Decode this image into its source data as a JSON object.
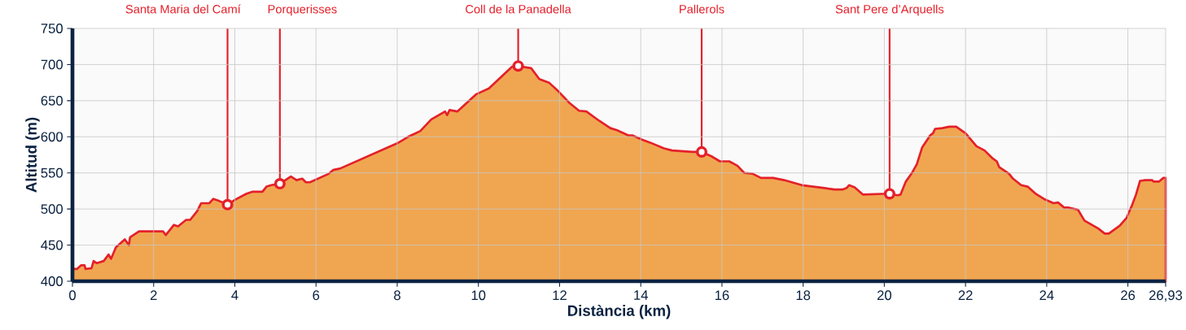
{
  "chart_data": {
    "type": "area",
    "xlabel": "Distància (km)",
    "ylabel": "Altitud (m)",
    "xlim": [
      0,
      26.93
    ],
    "ylim": [
      400,
      750
    ],
    "xticks": [
      0,
      2,
      4,
      6,
      8,
      10,
      12,
      14,
      16,
      18,
      20,
      22,
      24,
      26,
      {
        "value": 26.93,
        "label": "26,93"
      }
    ],
    "yticks": [
      400,
      450,
      500,
      550,
      600,
      650,
      700,
      750
    ],
    "grid": true,
    "x": [
      0,
      0.11,
      0.21,
      0.3,
      0.32,
      0.47,
      0.52,
      0.6,
      0.77,
      0.89,
      0.95,
      1.07,
      1.29,
      1.39,
      1.42,
      1.64,
      2.23,
      2.3,
      2.4,
      2.5,
      2.6,
      2.8,
      2.9,
      3.07,
      3.17,
      3.37,
      3.47,
      3.62,
      3.82,
      4.01,
      4.28,
      4.44,
      4.68,
      4.78,
      4.9,
      5.11,
      5.38,
      5.52,
      5.66,
      5.75,
      5.85,
      6.32,
      6.42,
      6.59,
      8.0,
      8.27,
      8.57,
      8.84,
      9.18,
      9.23,
      9.29,
      9.48,
      9.95,
      10.26,
      10.83,
      10.98,
      11.3,
      11.5,
      11.74,
      11.97,
      12.24,
      12.48,
      12.66,
      12.98,
      13.25,
      13.42,
      13.69,
      13.79,
      14.03,
      14.23,
      14.57,
      14.77,
      15.27,
      15.5,
      15.74,
      15.95,
      16.18,
      16.38,
      16.55,
      16.75,
      16.96,
      17.26,
      17.53,
      17.97,
      18.53,
      18.77,
      18.97,
      19.07,
      19.13,
      19.27,
      19.47,
      19.96,
      20.13,
      20.33,
      20.4,
      20.53,
      20.67,
      20.8,
      20.93,
      21.13,
      21.2,
      21.25,
      21.43,
      21.6,
      21.77,
      22.0,
      22.27,
      22.47,
      22.67,
      22.77,
      22.83,
      23.07,
      23.17,
      23.37,
      23.53,
      23.73,
      23.93,
      24.17,
      24.28,
      24.43,
      24.53,
      24.77,
      24.93,
      25.27,
      25.43,
      25.53,
      25.8,
      25.97,
      26.1,
      26.2,
      26.3,
      26.43,
      26.6,
      26.63,
      26.77,
      26.87,
      26.93
    ],
    "series": [
      {
        "type": "scatter",
        "color": "#e4202a",
        "x": [
          3.82,
          5.11,
          10.98,
          15.5,
          20.13
        ],
        "values": [
          506,
          535,
          698,
          579,
          521
        ]
      },
      {
        "color": "#f0a650",
        "values": [
          417,
          417,
          422,
          422,
          417,
          418,
          428,
          425,
          428,
          437,
          431,
          447,
          458,
          450,
          461,
          469,
          469,
          464,
          471,
          478,
          476,
          485,
          485,
          497,
          508,
          508,
          514,
          511,
          506,
          513,
          521,
          524,
          524,
          531,
          533,
          535,
          545,
          540,
          542,
          537,
          537,
          549,
          554,
          556,
          591,
          600,
          608,
          624,
          635,
          630,
          637,
          635,
          659,
          667,
          697,
          698,
          695,
          680,
          675,
          663,
          647,
          636,
          635,
          622,
          612,
          609,
          602,
          602,
          596,
          592,
          584,
          581,
          579,
          579,
          573,
          566,
          566,
          560,
          550,
          549,
          543,
          543,
          540,
          533,
          529,
          527,
          527,
          529,
          533,
          530,
          520,
          521,
          521,
          519,
          520,
          538,
          549,
          562,
          585,
          602,
          605,
          611,
          612,
          614,
          614,
          605,
          587,
          581,
          570,
          566,
          558,
          549,
          542,
          533,
          531,
          521,
          514,
          508,
          509,
          502,
          502,
          499,
          484,
          473,
          466,
          466,
          477,
          488,
          505,
          520,
          539,
          540,
          540,
          538,
          538,
          543,
          543
        ]
      }
    ],
    "ref_lines": [
      {
        "axis": "x",
        "value": 3.82,
        "label": "Santa Maria del Camí",
        "color": "#e4202a"
      },
      {
        "axis": "x",
        "value": 5.11,
        "label": "Porquerisses",
        "color": "#e4202a"
      },
      {
        "axis": "x",
        "value": 10.98,
        "label": "Coll de la Panadella",
        "color": "#e4202a"
      },
      {
        "axis": "x",
        "value": 15.5,
        "label": "Pallerols",
        "color": "#e4202a"
      },
      {
        "axis": "x",
        "value": 20.13,
        "label": "Sant Pere d’Arquells",
        "color": "#e4202a"
      }
    ]
  }
}
